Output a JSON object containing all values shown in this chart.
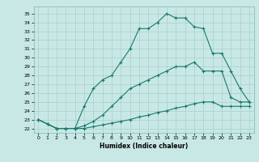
{
  "xlabel": "Humidex (Indice chaleur)",
  "ylabel": "",
  "background_color": "#c8e8e5",
  "grid_color": "#aacfcc",
  "line_color": "#1a7a6e",
  "xlim": [
    -0.5,
    23.5
  ],
  "ylim": [
    21.5,
    35.8
  ],
  "yticks": [
    22,
    23,
    24,
    25,
    26,
    27,
    28,
    29,
    30,
    31,
    32,
    33,
    34,
    35
  ],
  "xticks": [
    0,
    1,
    2,
    3,
    4,
    5,
    6,
    7,
    8,
    9,
    10,
    11,
    12,
    13,
    14,
    15,
    16,
    17,
    18,
    19,
    20,
    21,
    22,
    23
  ],
  "line1_x": [
    0,
    1,
    2,
    3,
    4,
    5,
    6,
    7,
    8,
    9,
    10,
    11,
    12,
    13,
    14,
    15,
    16,
    17,
    18,
    19,
    20,
    21,
    22,
    23
  ],
  "line1_y": [
    23.0,
    22.5,
    22.0,
    22.0,
    22.0,
    24.5,
    26.5,
    27.5,
    28.0,
    29.5,
    31.0,
    33.3,
    33.3,
    34.0,
    35.0,
    34.5,
    34.5,
    33.5,
    33.3,
    30.5,
    30.5,
    28.5,
    26.5,
    25.0
  ],
  "line2_x": [
    0,
    1,
    2,
    3,
    4,
    5,
    6,
    7,
    8,
    9,
    10,
    11,
    12,
    13,
    14,
    15,
    16,
    17,
    18,
    19,
    20,
    21,
    22,
    23
  ],
  "line2_y": [
    23.0,
    22.5,
    22.0,
    22.0,
    22.0,
    22.3,
    22.8,
    23.5,
    24.5,
    25.5,
    26.5,
    27.0,
    27.5,
    28.0,
    28.5,
    29.0,
    29.0,
    29.5,
    28.5,
    28.5,
    28.5,
    25.5,
    25.0,
    25.0
  ],
  "line3_x": [
    0,
    1,
    2,
    3,
    4,
    5,
    6,
    7,
    8,
    9,
    10,
    11,
    12,
    13,
    14,
    15,
    16,
    17,
    18,
    19,
    20,
    21,
    22,
    23
  ],
  "line3_y": [
    23.0,
    22.5,
    22.0,
    22.0,
    22.0,
    22.0,
    22.2,
    22.4,
    22.6,
    22.8,
    23.0,
    23.3,
    23.5,
    23.8,
    24.0,
    24.3,
    24.5,
    24.8,
    25.0,
    25.0,
    24.5,
    24.5,
    24.5,
    24.5
  ]
}
